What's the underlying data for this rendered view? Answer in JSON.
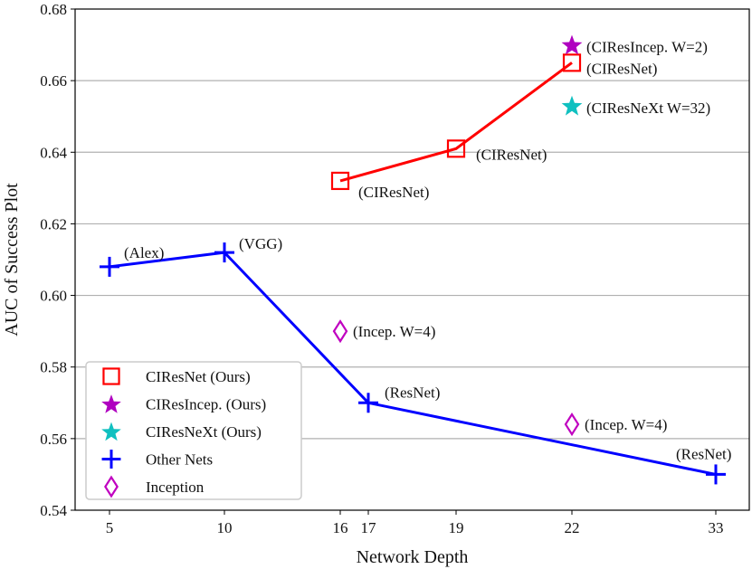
{
  "chart_data": {
    "type": "line",
    "title": "",
    "xlabel": "Network Depth",
    "ylabel": "AUC of Success Plot",
    "ylim": [
      0.54,
      0.68
    ],
    "x_ticks": [
      5,
      10,
      16,
      17,
      19,
      22,
      33
    ],
    "y_ticks": [
      "0.54",
      "0.56",
      "0.58",
      "0.60",
      "0.62",
      "0.64",
      "0.66",
      "0.68"
    ],
    "grid": "horizontal",
    "legend_position": "bottom-left",
    "series": [
      {
        "name": "CIResNet (Ours)",
        "marker": "square",
        "color": "#ff0000",
        "line": true,
        "points": [
          {
            "x": 16,
            "y": 0.632,
            "label": "(CIResNet)"
          },
          {
            "x": 19,
            "y": 0.641,
            "label": "(CIResNet)"
          },
          {
            "x": 22,
            "y": 0.665,
            "label": "(CIResNet)"
          }
        ]
      },
      {
        "name": "CIResIncep. (Ours)",
        "marker": "star",
        "color": "#b000c0",
        "line": false,
        "points": [
          {
            "x": 22,
            "y": 0.67,
            "label": "(CIResIncep. W=2)"
          }
        ]
      },
      {
        "name": "CIResNeXt (Ours)",
        "marker": "star",
        "color": "#10c0c0",
        "line": false,
        "points": [
          {
            "x": 22,
            "y": 0.653,
            "label": "(CIResNeXt W=32)"
          }
        ]
      },
      {
        "name": "Other Nets",
        "marker": "plus",
        "color": "#0000ff",
        "line": true,
        "points": [
          {
            "x": 5,
            "y": 0.608,
            "label": "(Alex)"
          },
          {
            "x": 10,
            "y": 0.612,
            "label": "(VGG)"
          },
          {
            "x": 17,
            "y": 0.57,
            "label": "(ResNet)"
          },
          {
            "x": 33,
            "y": 0.55,
            "label": "(ResNet)"
          }
        ]
      },
      {
        "name": "Inception",
        "marker": "diamond",
        "color": "#c000c0",
        "line": false,
        "points": [
          {
            "x": 16,
            "y": 0.59,
            "label": "(Incep. W=4)"
          },
          {
            "x": 22,
            "y": 0.564,
            "label": "(Incep. W=4)"
          }
        ]
      }
    ]
  }
}
